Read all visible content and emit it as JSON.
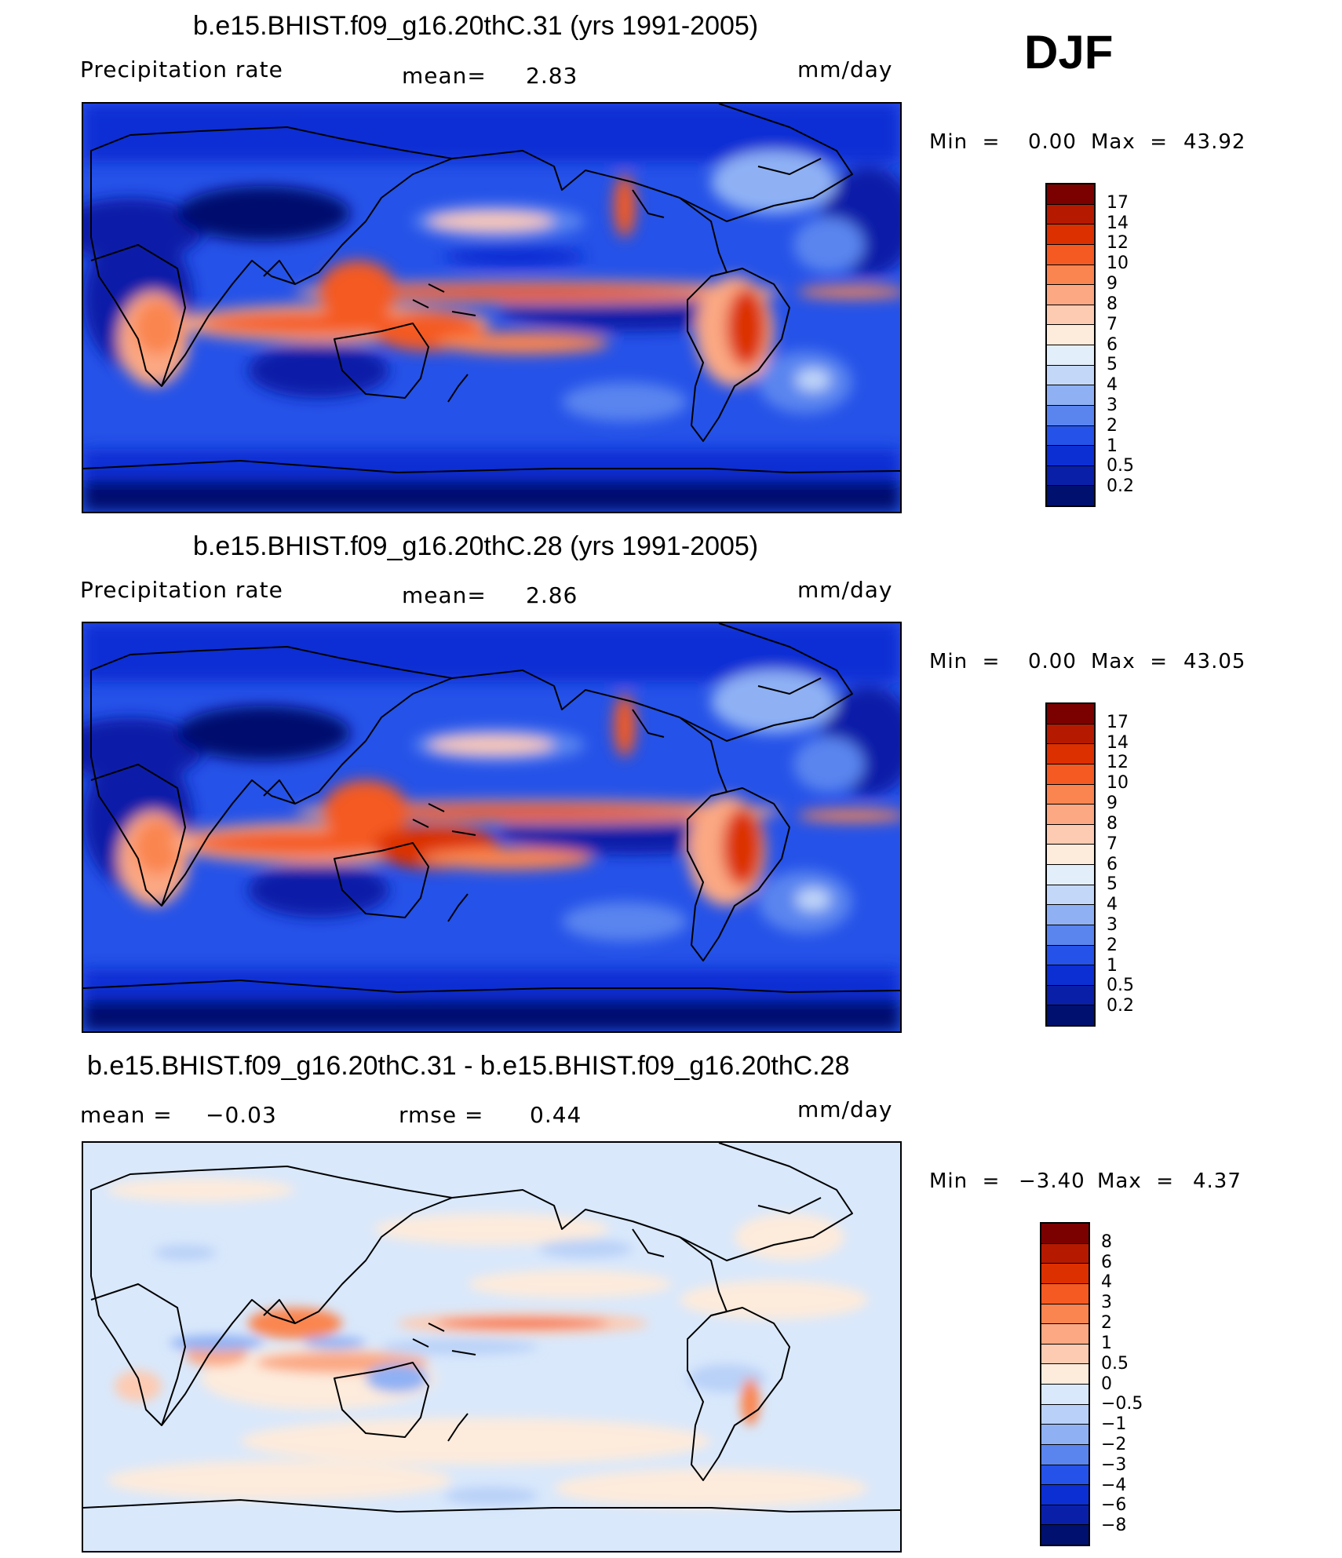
{
  "season": "DJF",
  "panels": [
    {
      "title": "b.e15.BHIST.f09_g16.20thC.31 (yrs 1991-2005)",
      "left_label": "Precipitation  rate",
      "center_label": "mean=",
      "center_value": "2.83",
      "units": "mm/day",
      "min_label": "Min  =",
      "min_value": "0.00",
      "max_label": "Max  =",
      "max_value": "43.92",
      "colorbar_labels": [
        "17",
        "14",
        "12",
        "10",
        "9",
        "8",
        "7",
        "6",
        "5",
        "4",
        "3",
        "2",
        "1",
        "0.5",
        "0.2"
      ]
    },
    {
      "title": "b.e15.BHIST.f09_g16.20thC.28 (yrs 1991-2005)",
      "left_label": "Precipitation  rate",
      "center_label": "mean=",
      "center_value": "2.86",
      "units": "mm/day",
      "min_label": "Min  =",
      "min_value": "0.00",
      "max_label": "Max  =",
      "max_value": "43.05",
      "colorbar_labels": [
        "17",
        "14",
        "12",
        "10",
        "9",
        "8",
        "7",
        "6",
        "5",
        "4",
        "3",
        "2",
        "1",
        "0.5",
        "0.2"
      ]
    },
    {
      "title": "b.e15.BHIST.f09_g16.20thC.31 - b.e15.BHIST.f09_g16.20thC.28",
      "left_label": "mean  =",
      "left_value": "−0.03",
      "center_label": "rmse  =",
      "center_value": "0.44",
      "units": "mm/day",
      "min_label": "Min  =",
      "min_value": "−3.40",
      "max_label": "Max  =",
      "max_value": "4.37",
      "colorbar_labels": [
        "8",
        "6",
        "4",
        "3",
        "2",
        "1",
        "0.5",
        "0",
        "−0.5",
        "−1",
        "−2",
        "−3",
        "−4",
        "−6",
        "−8"
      ]
    }
  ],
  "colors": {
    "precip_scale": [
      "#7b0000",
      "#b51a00",
      "#dc3000",
      "#f45a22",
      "#fa8550",
      "#fba883",
      "#fdcbb2",
      "#fdebdc",
      "#e3eefb",
      "#c3d8f8",
      "#8fb1f4",
      "#5a85ef",
      "#2552e8",
      "#0c2fd4",
      "#0a1fa8",
      "#00106e"
    ],
    "diff_scale": [
      "#7b0000",
      "#b51a00",
      "#dc3000",
      "#f45a22",
      "#fa8550",
      "#fba883",
      "#fdcbb2",
      "#fdebdc",
      "#d9e8fb",
      "#b9d1f8",
      "#8fb1f4",
      "#5a85ef",
      "#2552e8",
      "#0c2fd4",
      "#0a1fa8",
      "#00106e"
    ]
  }
}
